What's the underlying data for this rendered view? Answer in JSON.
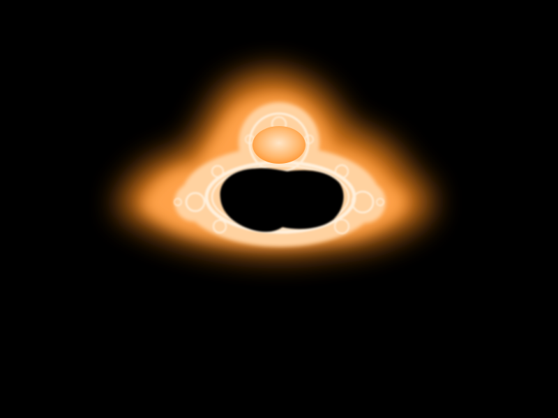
{
  "scene": {
    "subject": "mandelbrot-fractal",
    "palette": {
      "background": "#000000",
      "interior": "#000000",
      "glow_outer": "#ff8c1a",
      "glow_mid": "#ffa24a",
      "glow_inner": "#ffd2a0",
      "edge_highlight": "#fff0dc"
    }
  }
}
